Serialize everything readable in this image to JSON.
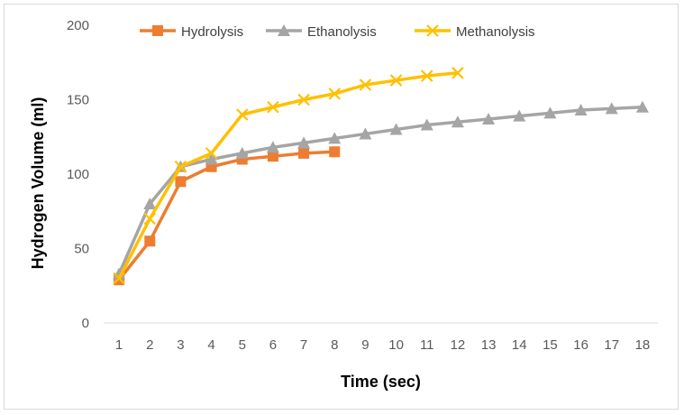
{
  "chart_data": {
    "type": "line",
    "title": "",
    "xlabel": "Time (sec)",
    "ylabel": "Hydrogen Volume (ml)",
    "x": [
      1,
      2,
      3,
      4,
      5,
      6,
      7,
      8,
      9,
      10,
      11,
      12,
      13,
      14,
      15,
      16,
      17,
      18
    ],
    "x_ticks": [
      "1",
      "2",
      "3",
      "4",
      "5",
      "6",
      "7",
      "8",
      "9",
      "10",
      "11",
      "12",
      "13",
      "14",
      "15",
      "16",
      "17",
      "18"
    ],
    "ylim": [
      0,
      200
    ],
    "y_ticks": [
      "0",
      "50",
      "100",
      "150",
      "200"
    ],
    "grid": false,
    "legend_position": "top",
    "series": [
      {
        "name": "Hydrolysis",
        "marker": "square",
        "color": "#ED7D31",
        "x": [
          1,
          2,
          3,
          4,
          5,
          6,
          7,
          8
        ],
        "values": [
          29,
          55,
          95,
          105,
          110,
          112,
          114,
          115
        ]
      },
      {
        "name": "Ethanolysis",
        "marker": "triangle",
        "color": "#A5A5A5",
        "x": [
          1,
          2,
          3,
          4,
          5,
          6,
          7,
          8,
          9,
          10,
          11,
          12,
          13,
          14,
          15,
          16,
          17,
          18
        ],
        "values": [
          33,
          80,
          105,
          110,
          114,
          118,
          121,
          124,
          127,
          130,
          133,
          135,
          137,
          139,
          141,
          143,
          144,
          145
        ]
      },
      {
        "name": "Methanolysis",
        "marker": "x",
        "color": "#FFC000",
        "x": [
          1,
          2,
          3,
          4,
          5,
          6,
          7,
          8,
          9,
          10,
          11,
          12
        ],
        "values": [
          30,
          70,
          105,
          114,
          140,
          145,
          150,
          154,
          160,
          163,
          166,
          168
        ]
      }
    ]
  }
}
